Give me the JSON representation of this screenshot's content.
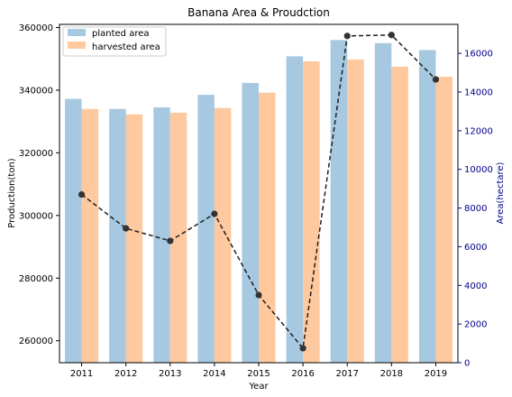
{
  "chart_data": {
    "type": "bar",
    "title": "Banana Area & Proudction",
    "xlabel": "Year",
    "ylabel": "Production(ton)",
    "y2label": "Area(hectare)",
    "categories": [
      "2011",
      "2012",
      "2013",
      "2014",
      "2015",
      "2016",
      "2017",
      "2018",
      "2019"
    ],
    "ylim": [
      253000,
      361000
    ],
    "y2lim": [
      0,
      17500
    ],
    "yticks": [
      260000,
      280000,
      300000,
      320000,
      340000,
      360000
    ],
    "y2ticks": [
      0,
      2000,
      4000,
      6000,
      8000,
      10000,
      12000,
      14000,
      16000
    ],
    "legend_position": "top-left",
    "grid": false,
    "series": [
      {
        "name": "planted area",
        "type": "bar",
        "color": "#a6c8e0",
        "values": [
          337200,
          334000,
          334500,
          338500,
          342300,
          350800,
          356000,
          355000,
          352800
        ]
      },
      {
        "name": "harvested area",
        "type": "bar",
        "color": "#fec99e",
        "values": [
          334000,
          332300,
          332800,
          334300,
          339200,
          349200,
          349800,
          347500,
          344300
        ]
      },
      {
        "type": "line",
        "axis": "right",
        "color": "#1f1f1f",
        "linestyle": "dashed",
        "values": [
          8700,
          6950,
          6300,
          7700,
          3500,
          750,
          16900,
          16950,
          14650
        ]
      }
    ]
  }
}
